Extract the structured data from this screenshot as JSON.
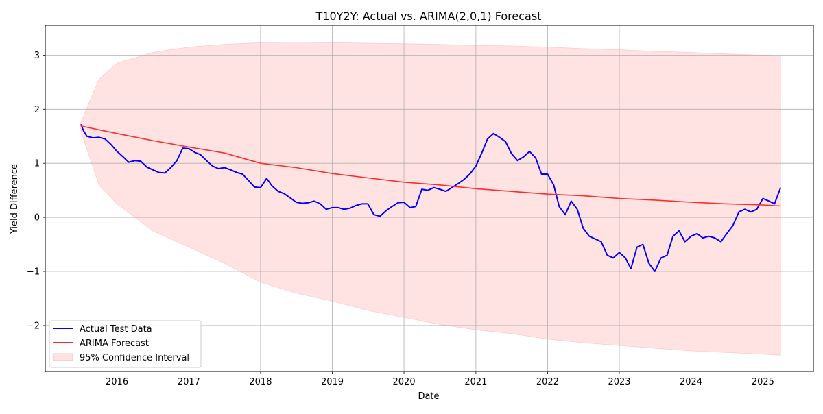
{
  "chart_data": {
    "type": "line",
    "title": "T10Y2Y: Actual vs. ARIMA(2,0,1) Forecast",
    "xlabel": "Date",
    "ylabel": "Yield Difference",
    "xlim": [
      "2015-01-01",
      "2025-09-15"
    ],
    "ylim": [
      -2.85,
      3.55
    ],
    "x_ticks": [
      "2016-01-01",
      "2017-01-01",
      "2018-01-01",
      "2019-01-01",
      "2020-01-01",
      "2021-01-01",
      "2022-01-01",
      "2023-01-01",
      "2024-01-01",
      "2025-01-01"
    ],
    "x_tick_labels": [
      "2016",
      "2017",
      "2018",
      "2019",
      "2020",
      "2021",
      "2022",
      "2023",
      "2024",
      "2025"
    ],
    "y_ticks": [
      -2,
      -1,
      0,
      1,
      2,
      3
    ],
    "y_tick_labels": [
      "−2",
      "−1",
      "0",
      "1",
      "2",
      "3"
    ],
    "grid": true,
    "legend_position": "lower-left",
    "series": [
      {
        "name": "Actual Test Data",
        "kind": "line",
        "color": "#0000ff",
        "points": [
          [
            "2015-07-01",
            1.72
          ],
          [
            "2015-07-15",
            1.6
          ],
          [
            "2015-08-01",
            1.5
          ],
          [
            "2015-09-01",
            1.47
          ],
          [
            "2015-10-01",
            1.48
          ],
          [
            "2015-11-01",
            1.45
          ],
          [
            "2015-12-01",
            1.35
          ],
          [
            "2016-01-01",
            1.22
          ],
          [
            "2016-02-01",
            1.12
          ],
          [
            "2016-03-01",
            1.02
          ],
          [
            "2016-04-01",
            1.05
          ],
          [
            "2016-05-01",
            1.04
          ],
          [
            "2016-06-01",
            0.93
          ],
          [
            "2016-07-01",
            0.88
          ],
          [
            "2016-08-01",
            0.83
          ],
          [
            "2016-09-01",
            0.82
          ],
          [
            "2016-10-01",
            0.92
          ],
          [
            "2016-11-01",
            1.05
          ],
          [
            "2016-12-01",
            1.28
          ],
          [
            "2017-01-01",
            1.27
          ],
          [
            "2017-02-01",
            1.2
          ],
          [
            "2017-03-01",
            1.16
          ],
          [
            "2017-04-01",
            1.05
          ],
          [
            "2017-05-01",
            0.95
          ],
          [
            "2017-06-01",
            0.9
          ],
          [
            "2017-07-01",
            0.92
          ],
          [
            "2017-08-01",
            0.88
          ],
          [
            "2017-09-01",
            0.83
          ],
          [
            "2017-10-01",
            0.8
          ],
          [
            "2017-11-01",
            0.68
          ],
          [
            "2017-12-01",
            0.56
          ],
          [
            "2018-01-01",
            0.55
          ],
          [
            "2018-02-01",
            0.72
          ],
          [
            "2018-03-01",
            0.58
          ],
          [
            "2018-04-01",
            0.48
          ],
          [
            "2018-05-01",
            0.44
          ],
          [
            "2018-06-01",
            0.36
          ],
          [
            "2018-07-01",
            0.28
          ],
          [
            "2018-08-01",
            0.26
          ],
          [
            "2018-09-01",
            0.27
          ],
          [
            "2018-10-01",
            0.3
          ],
          [
            "2018-11-01",
            0.25
          ],
          [
            "2018-12-01",
            0.15
          ],
          [
            "2019-01-01",
            0.18
          ],
          [
            "2019-02-01",
            0.18
          ],
          [
            "2019-03-01",
            0.15
          ],
          [
            "2019-04-01",
            0.17
          ],
          [
            "2019-05-01",
            0.22
          ],
          [
            "2019-06-01",
            0.25
          ],
          [
            "2019-07-01",
            0.25
          ],
          [
            "2019-08-01",
            0.05
          ],
          [
            "2019-09-01",
            0.02
          ],
          [
            "2019-10-01",
            0.12
          ],
          [
            "2019-11-01",
            0.2
          ],
          [
            "2019-12-01",
            0.27
          ],
          [
            "2020-01-01",
            0.28
          ],
          [
            "2020-02-01",
            0.18
          ],
          [
            "2020-03-01",
            0.2
          ],
          [
            "2020-04-01",
            0.52
          ],
          [
            "2020-05-01",
            0.5
          ],
          [
            "2020-06-01",
            0.55
          ],
          [
            "2020-07-01",
            0.52
          ],
          [
            "2020-08-01",
            0.48
          ],
          [
            "2020-09-01",
            0.55
          ],
          [
            "2020-10-01",
            0.62
          ],
          [
            "2020-11-01",
            0.7
          ],
          [
            "2020-12-01",
            0.8
          ],
          [
            "2021-01-01",
            0.95
          ],
          [
            "2021-02-01",
            1.2
          ],
          [
            "2021-03-01",
            1.45
          ],
          [
            "2021-04-01",
            1.55
          ],
          [
            "2021-05-01",
            1.48
          ],
          [
            "2021-06-01",
            1.4
          ],
          [
            "2021-07-01",
            1.18
          ],
          [
            "2021-08-01",
            1.05
          ],
          [
            "2021-09-01",
            1.12
          ],
          [
            "2021-10-01",
            1.22
          ],
          [
            "2021-11-01",
            1.1
          ],
          [
            "2021-12-01",
            0.8
          ],
          [
            "2022-01-01",
            0.8
          ],
          [
            "2022-02-01",
            0.6
          ],
          [
            "2022-03-01",
            0.2
          ],
          [
            "2022-04-01",
            0.05
          ],
          [
            "2022-05-01",
            0.3
          ],
          [
            "2022-06-01",
            0.15
          ],
          [
            "2022-07-01",
            -0.2
          ],
          [
            "2022-08-01",
            -0.35
          ],
          [
            "2022-09-01",
            -0.4
          ],
          [
            "2022-10-01",
            -0.45
          ],
          [
            "2022-11-01",
            -0.7
          ],
          [
            "2022-12-01",
            -0.75
          ],
          [
            "2023-01-01",
            -0.65
          ],
          [
            "2023-02-01",
            -0.75
          ],
          [
            "2023-03-01",
            -0.95
          ],
          [
            "2023-04-01",
            -0.55
          ],
          [
            "2023-05-01",
            -0.5
          ],
          [
            "2023-06-01",
            -0.85
          ],
          [
            "2023-07-01",
            -1.0
          ],
          [
            "2023-08-01",
            -0.75
          ],
          [
            "2023-09-01",
            -0.7
          ],
          [
            "2023-10-01",
            -0.35
          ],
          [
            "2023-11-01",
            -0.25
          ],
          [
            "2023-12-01",
            -0.45
          ],
          [
            "2024-01-01",
            -0.35
          ],
          [
            "2024-02-01",
            -0.3
          ],
          [
            "2024-03-01",
            -0.38
          ],
          [
            "2024-04-01",
            -0.35
          ],
          [
            "2024-05-01",
            -0.38
          ],
          [
            "2024-06-01",
            -0.45
          ],
          [
            "2024-07-01",
            -0.3
          ],
          [
            "2024-08-01",
            -0.15
          ],
          [
            "2024-09-01",
            0.1
          ],
          [
            "2024-10-01",
            0.15
          ],
          [
            "2024-11-01",
            0.1
          ],
          [
            "2024-12-01",
            0.15
          ],
          [
            "2025-01-01",
            0.35
          ],
          [
            "2025-02-01",
            0.3
          ],
          [
            "2025-03-01",
            0.25
          ],
          [
            "2025-04-01",
            0.55
          ]
        ]
      },
      {
        "name": "ARIMA Forecast",
        "kind": "line",
        "color": "#ff2a2a",
        "points": [
          [
            "2015-07-01",
            1.69
          ],
          [
            "2016-01-01",
            1.55
          ],
          [
            "2016-07-01",
            1.42
          ],
          [
            "2017-01-01",
            1.3
          ],
          [
            "2017-07-01",
            1.19
          ],
          [
            "2018-01-01",
            1.0
          ],
          [
            "2018-07-01",
            0.92
          ],
          [
            "2019-01-01",
            0.81
          ],
          [
            "2019-07-01",
            0.73
          ],
          [
            "2020-01-01",
            0.65
          ],
          [
            "2020-07-01",
            0.6
          ],
          [
            "2021-01-01",
            0.53
          ],
          [
            "2021-07-01",
            0.48
          ],
          [
            "2022-01-01",
            0.43
          ],
          [
            "2022-07-01",
            0.4
          ],
          [
            "2023-01-01",
            0.35
          ],
          [
            "2023-07-01",
            0.32
          ],
          [
            "2024-01-01",
            0.28
          ],
          [
            "2024-07-01",
            0.25
          ],
          [
            "2025-01-01",
            0.23
          ],
          [
            "2025-04-01",
            0.21
          ]
        ]
      },
      {
        "name": "95% Confidence Interval",
        "kind": "band",
        "color": "#ffcccc",
        "opacity": 0.55,
        "x": [
          "2015-07-01",
          "2015-10-01",
          "2016-01-01",
          "2016-07-01",
          "2017-01-01",
          "2017-07-01",
          "2018-01-01",
          "2018-07-01",
          "2019-01-01",
          "2019-07-01",
          "2020-01-01",
          "2020-07-01",
          "2021-01-01",
          "2021-07-01",
          "2022-01-01",
          "2022-07-01",
          "2023-01-01",
          "2023-07-01",
          "2024-01-01",
          "2024-07-01",
          "2025-01-01",
          "2025-04-01"
        ],
        "upper": [
          1.75,
          2.55,
          2.85,
          3.05,
          3.15,
          3.2,
          3.23,
          3.24,
          3.23,
          3.22,
          3.21,
          3.2,
          3.18,
          3.17,
          3.15,
          3.12,
          3.1,
          3.07,
          3.05,
          3.02,
          3.0,
          2.98
        ],
        "lower": [
          1.6,
          0.6,
          0.25,
          -0.25,
          -0.55,
          -0.85,
          -1.2,
          -1.4,
          -1.55,
          -1.72,
          -1.85,
          -1.98,
          -2.08,
          -2.15,
          -2.25,
          -2.32,
          -2.37,
          -2.42,
          -2.47,
          -2.5,
          -2.53,
          -2.55
        ]
      }
    ]
  }
}
